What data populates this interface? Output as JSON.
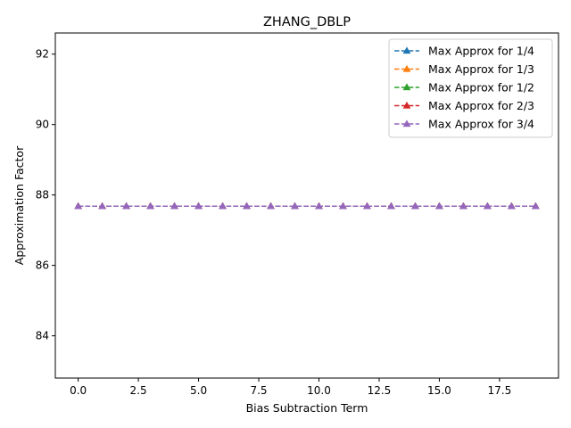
{
  "chart_data": {
    "type": "line",
    "title": "ZHANG_DBLP",
    "xlabel": "Bias Subtraction Term",
    "ylabel": "Approximation Factor",
    "xlim": [
      -0.95,
      19.95
    ],
    "ylim": [
      82.8,
      92.6
    ],
    "xticks": [
      0.0,
      2.5,
      5.0,
      7.5,
      10.0,
      12.5,
      15.0,
      17.5
    ],
    "xtick_labels": [
      "0.0",
      "2.5",
      "5.0",
      "7.5",
      "10.0",
      "12.5",
      "15.0",
      "17.5"
    ],
    "yticks": [
      84,
      86,
      88,
      90,
      92
    ],
    "ytick_labels": [
      "84",
      "86",
      "88",
      "90",
      "92"
    ],
    "grid": false,
    "legend_position": "top-right",
    "x": [
      0,
      1,
      2,
      3,
      4,
      5,
      6,
      7,
      8,
      9,
      10,
      11,
      12,
      13,
      14,
      15,
      16,
      17,
      18,
      19
    ],
    "series": [
      {
        "name": "Max Approx for 1/4",
        "color": "#1f77b4",
        "values": [
          87.68,
          87.68,
          87.68,
          87.68,
          87.68,
          87.68,
          87.68,
          87.68,
          87.68,
          87.68,
          87.68,
          87.68,
          87.68,
          87.68,
          87.68,
          87.68,
          87.68,
          87.68,
          87.68,
          87.68
        ]
      },
      {
        "name": "Max Approx for 1/3",
        "color": "#ff7f0e",
        "values": [
          87.68,
          87.68,
          87.68,
          87.68,
          87.68,
          87.68,
          87.68,
          87.68,
          87.68,
          87.68,
          87.68,
          87.68,
          87.68,
          87.68,
          87.68,
          87.68,
          87.68,
          87.68,
          87.68,
          87.68
        ]
      },
      {
        "name": "Max Approx for 1/2",
        "color": "#2ca02c",
        "values": [
          87.68,
          87.68,
          87.68,
          87.68,
          87.68,
          87.68,
          87.68,
          87.68,
          87.68,
          87.68,
          87.68,
          87.68,
          87.68,
          87.68,
          87.68,
          87.68,
          87.68,
          87.68,
          87.68,
          87.68
        ]
      },
      {
        "name": "Max Approx for 2/3",
        "color": "#d62728",
        "values": [
          87.68,
          87.68,
          87.68,
          87.68,
          87.68,
          87.68,
          87.68,
          87.68,
          87.68,
          87.68,
          87.68,
          87.68,
          87.68,
          87.68,
          87.68,
          87.68,
          87.68,
          87.68,
          87.68,
          87.68
        ]
      },
      {
        "name": "Max Approx for 3/4",
        "color": "#9467bd",
        "values": [
          87.68,
          87.68,
          87.68,
          87.68,
          87.68,
          87.68,
          87.68,
          87.68,
          87.68,
          87.68,
          87.68,
          87.68,
          87.68,
          87.68,
          87.68,
          87.68,
          87.68,
          87.68,
          87.68,
          87.68
        ]
      }
    ]
  }
}
